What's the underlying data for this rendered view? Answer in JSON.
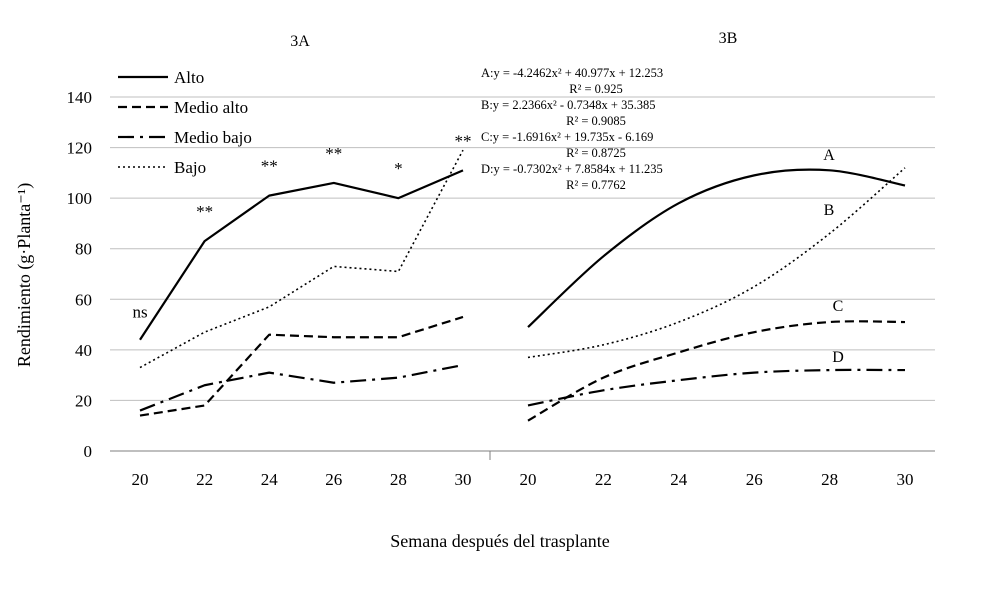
{
  "chart_data": [
    {
      "type": "line",
      "title": "3A",
      "xlabel": "Semana después del trasplante",
      "ylabel": "Rendimiento (g·Planta⁻¹)",
      "ylim": [
        0,
        140
      ],
      "yticks": [
        0,
        20,
        40,
        60,
        80,
        100,
        120,
        140
      ],
      "grid": true,
      "legend": "top-left",
      "x": [
        20,
        22,
        24,
        26,
        28,
        30
      ],
      "series": [
        {
          "name": "Alto",
          "style": "solid",
          "values": [
            44,
            83,
            101,
            106,
            100,
            111
          ]
        },
        {
          "name": "Medio alto",
          "style": "dashed",
          "values": [
            14,
            18,
            46,
            45,
            45,
            53
          ]
        },
        {
          "name": "Medio bajo",
          "style": "dashdot",
          "values": [
            16,
            26,
            31,
            27,
            29,
            34
          ]
        },
        {
          "name": "Bajo",
          "style": "dotted",
          "values": [
            33,
            47,
            57,
            73,
            71,
            119
          ]
        }
      ],
      "significance": [
        "ns",
        "**",
        "**",
        "**",
        "*",
        "**"
      ]
    },
    {
      "type": "line",
      "title": "3B",
      "xlabel": "Semana después del trasplante",
      "ylim": [
        0,
        140
      ],
      "grid": true,
      "x": [
        20,
        30
      ],
      "series": [
        {
          "name": "A",
          "style": "solid",
          "equation": "A:y = -4.2462x² + 40.977x + 12.253",
          "r2": "R² = 0.925",
          "values_at_x": [
            [
              20,
              49
            ],
            [
              22,
              77
            ],
            [
              24,
              98
            ],
            [
              26,
              109
            ],
            [
              28,
              111
            ],
            [
              30,
              105
            ]
          ]
        },
        {
          "name": "B",
          "style": "dotted",
          "equation": "B:y = 2.2366x² - 0.7348x + 35.385",
          "r2": "R² = 0.9085",
          "values_at_x": [
            [
              20,
              37
            ],
            [
              22,
              42
            ],
            [
              24,
              51
            ],
            [
              26,
              65
            ],
            [
              28,
              86
            ],
            [
              30,
              112
            ]
          ]
        },
        {
          "name": "C",
          "style": "dashed",
          "equation": "C:y = -1.6916x² + 19.735x - 6.169",
          "r2": "R² = 0.8725",
          "values_at_x": [
            [
              20,
              12
            ],
            [
              22,
              29
            ],
            [
              24,
              39
            ],
            [
              26,
              47
            ],
            [
              28,
              51
            ],
            [
              30,
              51
            ]
          ]
        },
        {
          "name": "D",
          "style": "dashdot",
          "equation": "D:y = -0.7302x² + 7.8584x + 11.235",
          "r2": "R² = 0.7762",
          "values_at_x": [
            [
              20,
              18
            ],
            [
              22,
              24
            ],
            [
              24,
              28
            ],
            [
              26,
              31
            ],
            [
              28,
              32
            ],
            [
              30,
              32
            ]
          ]
        }
      ]
    }
  ]
}
